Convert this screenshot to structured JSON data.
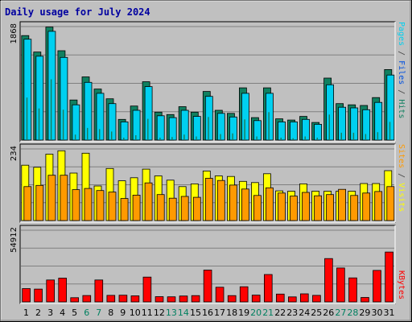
{
  "chart_data": {
    "type": "bar",
    "title": "Daily usage for July 2024",
    "categories": [
      "1",
      "2",
      "3",
      "4",
      "5",
      "6",
      "7",
      "8",
      "9",
      "10",
      "11",
      "12",
      "13",
      "14",
      "15",
      "16",
      "17",
      "18",
      "19",
      "20",
      "21",
      "22",
      "23",
      "24",
      "25",
      "26",
      "27",
      "28",
      "29",
      "30",
      "31"
    ],
    "weekend_days": [
      "6",
      "7",
      "13",
      "14",
      "20",
      "21",
      "27",
      "28"
    ],
    "colors": {
      "pages": "#1a7a5a",
      "files": "#00d0f0",
      "hits": "#108060",
      "visits": "#ffff00",
      "sites": "#ff9a00",
      "kbytes": "#ff0000",
      "title": "#0000a0",
      "weekday_label": "#000000",
      "weekend_label": "#008060",
      "panel_bg": "#c0c0c0"
    },
    "panels": [
      {
        "id": "hits",
        "ymax_label": "1868",
        "ymax": 1868,
        "label_parts": [
          {
            "text": "Pages",
            "color": "#00d0f0"
          },
          {
            "text": " / ",
            "color": "#404040"
          },
          {
            "text": "Files",
            "color": "#0050e0"
          },
          {
            "text": " / ",
            "color": "#404040"
          },
          {
            "text": "Hits",
            "color": "#108060"
          }
        ],
        "series": [
          {
            "name": "Hits",
            "values": [
              1720,
              1450,
              1860,
              1470,
              660,
              1040,
              840,
              680,
              340,
              560,
              960,
              460,
              420,
              550,
              460,
              800,
              490,
              440,
              860,
              370,
              860,
              350,
              330,
              390,
              290,
              1020,
              600,
              580,
              570,
              700,
              1160
            ]
          },
          {
            "name": "Files",
            "values": [
              1660,
              1380,
              1790,
              1360,
              580,
              950,
              770,
              600,
              300,
              490,
              880,
              400,
              370,
              490,
              390,
              720,
              440,
              380,
              770,
              320,
              770,
              300,
              300,
              340,
              260,
              910,
              540,
              530,
              500,
              620,
              1070
            ]
          },
          {
            "name": "Pages",
            "values": [
              700,
              520,
              1000,
              500,
              90,
              200,
              180,
              140,
              40,
              80,
              350,
              40,
              50,
              90,
              60,
              380,
              100,
              110,
              340,
              60,
              460,
              40,
              30,
              60,
              40,
              420,
              120,
              120,
              100,
              130,
              300
            ]
          }
        ]
      },
      {
        "id": "visits",
        "ymax_label": "234",
        "ymax": 234,
        "label_parts": [
          {
            "text": "Sites",
            "color": "#ff9a00"
          },
          {
            "text": " / ",
            "color": "#404040"
          },
          {
            "text": "Visits",
            "color": "#ffff00"
          }
        ],
        "series": [
          {
            "name": "Visits",
            "values": [
              181,
              174,
              217,
              228,
              155,
              220,
              113,
              170,
              130,
              140,
              168,
              146,
              132,
              111,
              120,
              162,
              146,
              144,
              128,
              124,
              153,
              97,
              96,
              120,
              96,
              96,
              96,
              96,
              121,
              121,
              163
            ]
          },
          {
            "name": "Sites",
            "values": [
              111,
              115,
              148,
              148,
              101,
              105,
              98,
              93,
              72,
              83,
              123,
              85,
              73,
              79,
              76,
              138,
              131,
              116,
              103,
              82,
              107,
              90,
              80,
              92,
              81,
              85,
              102,
              82,
              90,
              95,
              111
            ]
          }
        ]
      },
      {
        "id": "kbytes",
        "ymax_label": "54912",
        "ymax": 54912,
        "label_parts": [
          {
            "text": "KBytes",
            "color": "#ff0000"
          }
        ],
        "series": [
          {
            "name": "KBytes",
            "values": [
              10200,
              9800,
              16800,
              18200,
              3200,
              4900,
              16800,
              5000,
              5100,
              4600,
              19000,
              4000,
              3900,
              4500,
              4800,
              24400,
              11200,
              4800,
              11600,
              5200,
              21000,
              6000,
              3800,
              6200,
              5000,
              33200,
              26000,
              18400,
              3400,
              24100,
              38200
            ]
          }
        ]
      }
    ]
  }
}
